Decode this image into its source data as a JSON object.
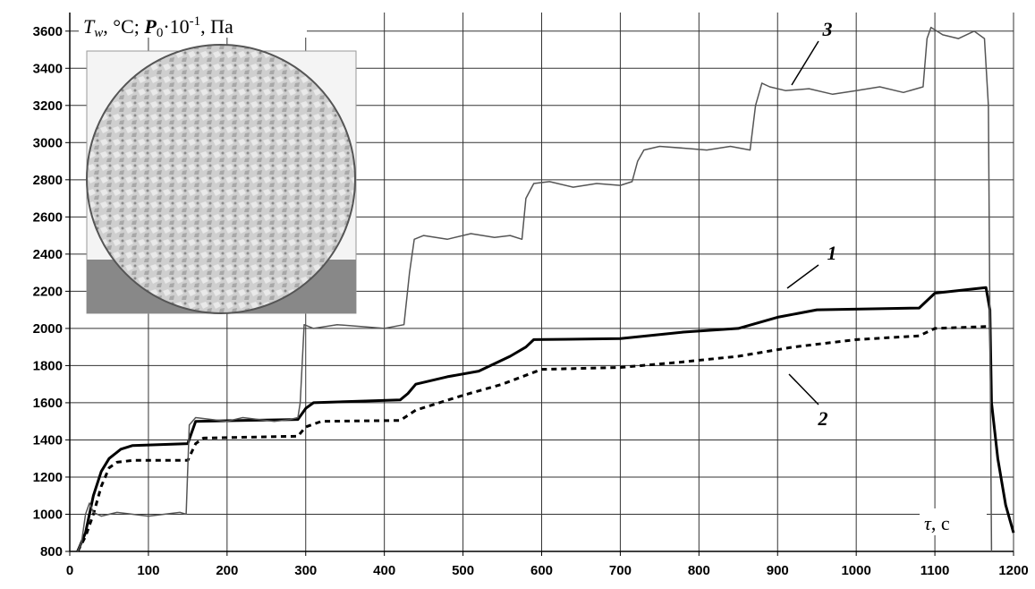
{
  "chart_data": {
    "type": "line",
    "y_label_parts": [
      "T",
      "w",
      ", °C; ",
      "P",
      "0",
      "·10",
      "-1",
      ", Па"
    ],
    "x_label_parts": [
      "τ",
      ", с"
    ],
    "xlim": [
      0,
      1200
    ],
    "xticks": [
      0,
      100,
      200,
      300,
      400,
      500,
      600,
      700,
      800,
      900,
      1000,
      1100,
      1200
    ],
    "ylim": [
      800,
      3700
    ],
    "yticks": [
      800,
      1000,
      1200,
      1400,
      1600,
      1800,
      2000,
      2200,
      2400,
      2600,
      2800,
      3000,
      3200,
      3400,
      3600
    ],
    "grid": true,
    "series": [
      {
        "name": "1",
        "color": "#000000",
        "dash": false,
        "width": 3,
        "x": [
          10,
          20,
          30,
          40,
          50,
          65,
          80,
          150,
          155,
          160,
          290,
          300,
          310,
          420,
          430,
          440,
          480,
          520,
          560,
          580,
          590,
          700,
          780,
          850,
          900,
          950,
          1080,
          1100,
          1165,
          1170,
          1172,
          1180,
          1190,
          1200
        ],
        "values": [
          800,
          900,
          1100,
          1230,
          1300,
          1350,
          1370,
          1380,
          1440,
          1500,
          1510,
          1570,
          1600,
          1615,
          1650,
          1700,
          1740,
          1770,
          1850,
          1900,
          1940,
          1945,
          1980,
          2000,
          2060,
          2100,
          2110,
          2190,
          2220,
          2100,
          1600,
          1300,
          1050,
          900
        ]
      },
      {
        "name": "2",
        "color": "#000000",
        "dash": true,
        "width": 3,
        "x": [
          10,
          20,
          30,
          40,
          50,
          60,
          80,
          150,
          160,
          170,
          290,
          300,
          320,
          420,
          440,
          500,
          550,
          600,
          700,
          780,
          850,
          920,
          1000,
          1080,
          1100,
          1165
        ],
        "values": [
          800,
          880,
          1000,
          1150,
          1250,
          1280,
          1290,
          1290,
          1380,
          1410,
          1420,
          1470,
          1500,
          1505,
          1560,
          1640,
          1700,
          1780,
          1790,
          1820,
          1850,
          1900,
          1940,
          1960,
          2000,
          2010
        ]
      },
      {
        "name": "3",
        "color": "#555555",
        "dash": false,
        "width": 1.5,
        "x": [
          10,
          15,
          20,
          25,
          30,
          40,
          60,
          80,
          100,
          120,
          140,
          148,
          152,
          160,
          180,
          200,
          220,
          240,
          260,
          280,
          290,
          293,
          298,
          310,
          340,
          370,
          400,
          425,
          432,
          438,
          450,
          480,
          510,
          540,
          560,
          575,
          580,
          590,
          610,
          640,
          670,
          700,
          715,
          722,
          730,
          750,
          780,
          810,
          840,
          865,
          872,
          880,
          890,
          910,
          940,
          970,
          1000,
          1030,
          1060,
          1085,
          1090,
          1095,
          1110,
          1130,
          1150,
          1163,
          1168,
          1172
        ],
        "values": [
          800,
          850,
          1000,
          1060,
          1010,
          990,
          1010,
          1000,
          990,
          1000,
          1010,
          1000,
          1480,
          1520,
          1510,
          1500,
          1520,
          1510,
          1500,
          1510,
          1520,
          1600,
          2020,
          2000,
          2020,
          2010,
          2000,
          2020,
          2300,
          2480,
          2500,
          2480,
          2510,
          2490,
          2500,
          2480,
          2700,
          2780,
          2790,
          2760,
          2780,
          2770,
          2790,
          2900,
          2960,
          2980,
          2970,
          2960,
          2980,
          2960,
          3200,
          3320,
          3300,
          3280,
          3290,
          3260,
          3280,
          3300,
          3270,
          3300,
          3560,
          3620,
          3580,
          3560,
          3600,
          3560,
          3200,
          800
        ]
      }
    ]
  }
}
